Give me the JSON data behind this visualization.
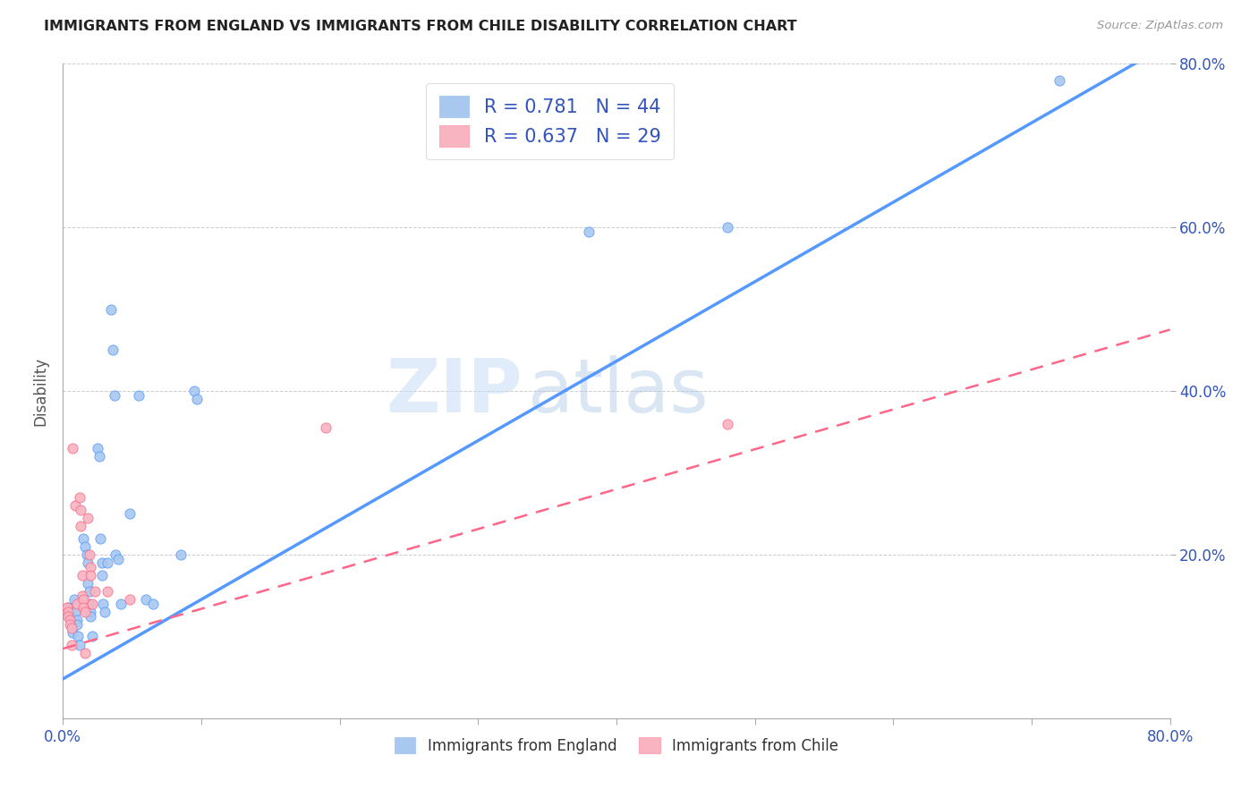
{
  "title": "IMMIGRANTS FROM ENGLAND VS IMMIGRANTS FROM CHILE DISABILITY CORRELATION CHART",
  "source": "Source: ZipAtlas.com",
  "ylabel": "Disability",
  "xlim": [
    0.0,
    0.8
  ],
  "ylim": [
    0.0,
    0.8
  ],
  "xtick_values": [
    0.0,
    0.1,
    0.2,
    0.3,
    0.4,
    0.5,
    0.6,
    0.7,
    0.8
  ],
  "xtick_show": [
    0.0,
    0.8
  ],
  "xtick_labels_ends": [
    "0.0%",
    "80.0%"
  ],
  "ytick_values": [
    0.2,
    0.4,
    0.6,
    0.8
  ],
  "ytick_labels": [
    "20.0%",
    "40.0%",
    "60.0%",
    "80.0%"
  ],
  "england_color": "#a8c8f0",
  "chile_color": "#f8b4c0",
  "england_line_color": "#5599ff",
  "chile_line_color": "#ff6688",
  "england_R": 0.781,
  "england_N": 44,
  "chile_R": 0.637,
  "chile_N": 29,
  "watermark_zip": "ZIP",
  "watermark_atlas": "atlas",
  "england_trend": [
    0.0,
    0.048,
    0.8,
    0.825
  ],
  "chile_trend": [
    0.0,
    0.085,
    0.8,
    0.475
  ],
  "england_points": [
    [
      0.004,
      0.135
    ],
    [
      0.005,
      0.125
    ],
    [
      0.006,
      0.115
    ],
    [
      0.007,
      0.105
    ],
    [
      0.008,
      0.145
    ],
    [
      0.009,
      0.13
    ],
    [
      0.01,
      0.12
    ],
    [
      0.01,
      0.115
    ],
    [
      0.011,
      0.1
    ],
    [
      0.012,
      0.09
    ],
    [
      0.015,
      0.22
    ],
    [
      0.016,
      0.21
    ],
    [
      0.017,
      0.2
    ],
    [
      0.018,
      0.19
    ],
    [
      0.018,
      0.165
    ],
    [
      0.019,
      0.155
    ],
    [
      0.019,
      0.14
    ],
    [
      0.02,
      0.13
    ],
    [
      0.02,
      0.125
    ],
    [
      0.021,
      0.1
    ],
    [
      0.025,
      0.33
    ],
    [
      0.026,
      0.32
    ],
    [
      0.027,
      0.22
    ],
    [
      0.028,
      0.19
    ],
    [
      0.028,
      0.175
    ],
    [
      0.029,
      0.14
    ],
    [
      0.03,
      0.13
    ],
    [
      0.032,
      0.19
    ],
    [
      0.035,
      0.5
    ],
    [
      0.036,
      0.45
    ],
    [
      0.037,
      0.395
    ],
    [
      0.038,
      0.2
    ],
    [
      0.04,
      0.195
    ],
    [
      0.042,
      0.14
    ],
    [
      0.048,
      0.25
    ],
    [
      0.055,
      0.395
    ],
    [
      0.06,
      0.145
    ],
    [
      0.065,
      0.14
    ],
    [
      0.085,
      0.2
    ],
    [
      0.095,
      0.4
    ],
    [
      0.097,
      0.39
    ],
    [
      0.38,
      0.595
    ],
    [
      0.48,
      0.6
    ],
    [
      0.72,
      0.78
    ]
  ],
  "chile_points": [
    [
      0.003,
      0.135
    ],
    [
      0.004,
      0.13
    ],
    [
      0.004,
      0.125
    ],
    [
      0.005,
      0.12
    ],
    [
      0.005,
      0.115
    ],
    [
      0.006,
      0.11
    ],
    [
      0.006,
      0.09
    ],
    [
      0.007,
      0.33
    ],
    [
      0.009,
      0.26
    ],
    [
      0.01,
      0.14
    ],
    [
      0.012,
      0.27
    ],
    [
      0.013,
      0.255
    ],
    [
      0.013,
      0.235
    ],
    [
      0.014,
      0.175
    ],
    [
      0.014,
      0.15
    ],
    [
      0.015,
      0.145
    ],
    [
      0.015,
      0.135
    ],
    [
      0.016,
      0.13
    ],
    [
      0.016,
      0.08
    ],
    [
      0.018,
      0.245
    ],
    [
      0.019,
      0.2
    ],
    [
      0.02,
      0.185
    ],
    [
      0.02,
      0.175
    ],
    [
      0.021,
      0.14
    ],
    [
      0.023,
      0.155
    ],
    [
      0.032,
      0.155
    ],
    [
      0.048,
      0.145
    ],
    [
      0.19,
      0.355
    ],
    [
      0.48,
      0.36
    ]
  ]
}
